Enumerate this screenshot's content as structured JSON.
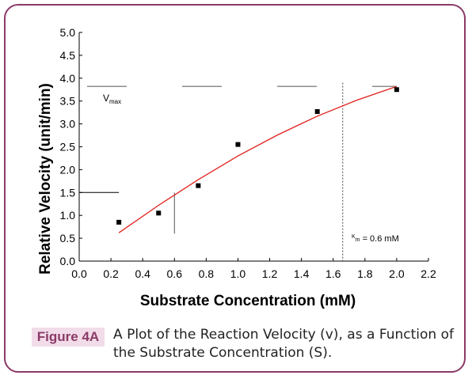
{
  "chart_data": {
    "type": "scatter",
    "xlabel": "Substrate Concentration (mM)",
    "ylabel": "Relative Velocity (unit/min)",
    "xlim": [
      0.0,
      2.2
    ],
    "ylim": [
      0.0,
      5.0
    ],
    "x_ticks": [
      "0.0",
      "0.2",
      "0.4",
      "0.6",
      "0.8",
      "1.0",
      "1.2",
      "1.4",
      "1.6",
      "1.8",
      "2.0",
      "2.2"
    ],
    "y_ticks": [
      "0.0",
      "0.5",
      "1.0",
      "1.5",
      "2.0",
      "2.5",
      "3.0",
      "3.5",
      "4.0",
      "4.5",
      "5.0"
    ],
    "grid": false,
    "series": [
      {
        "x": [
          0.25,
          0.5,
          0.75,
          1.0,
          1.5,
          2.0
        ],
        "y": [
          0.85,
          1.05,
          1.65,
          2.55,
          3.27,
          3.75
        ],
        "color": "#000000"
      }
    ],
    "fit_curve": {
      "x": [
        0.25,
        0.5,
        0.75,
        1.0,
        1.25,
        1.5,
        1.75,
        2.0
      ],
      "y": [
        0.62,
        1.22,
        1.78,
        2.3,
        2.76,
        3.17,
        3.52,
        3.82
      ],
      "color": "#e0201b"
    },
    "vmax": {
      "y": 3.82,
      "label_main": "V",
      "label_sub": "max"
    },
    "km": {
      "x": 1.66,
      "label_main": "K",
      "label_sub": "m",
      "label_rest": " = 0.6 mM"
    },
    "half_vmax": {
      "y": 1.5,
      "x": 0.6
    }
  },
  "caption": {
    "label": "Figure 4A",
    "text": "A Plot of the Reaction Velocity (v), as a Function of the Substrate Concentration (S)."
  }
}
